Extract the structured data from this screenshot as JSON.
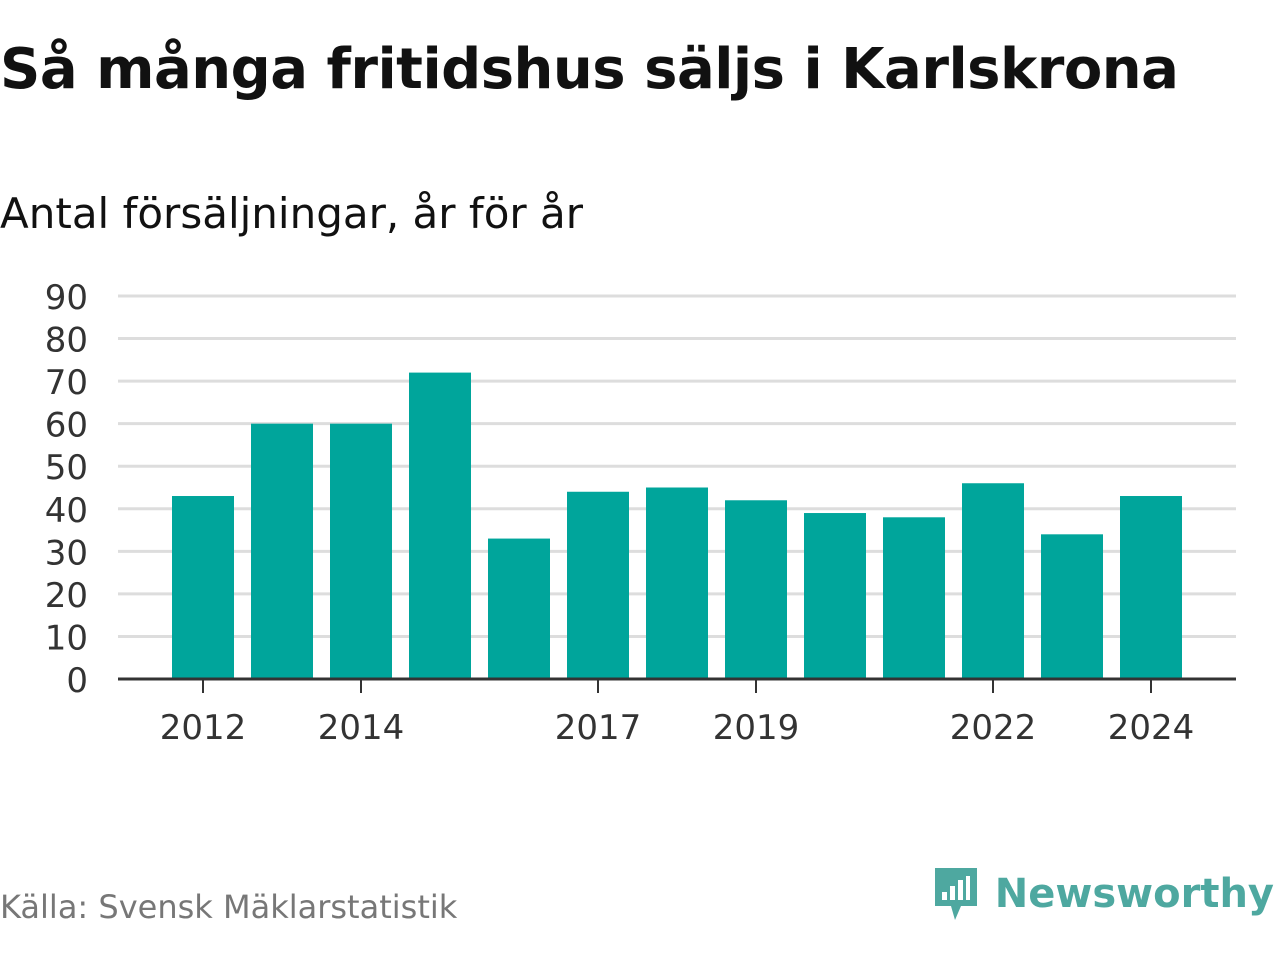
{
  "title": "Så många fritidshus säljs i Karlskrona",
  "subtitle": "Antal försäljningar, år för år",
  "source": "Källa: Svensk Mäklarstatistik",
  "brand": "Newsworthy",
  "colors": {
    "bar": "#00a59b",
    "grid": "#dddddd",
    "axis": "#333333",
    "brand": "#4ea8a0"
  },
  "chart_data": {
    "type": "bar",
    "categories": [
      "2012",
      "2013",
      "2014",
      "2015",
      "2016",
      "2017",
      "2018",
      "2019",
      "2020",
      "2021",
      "2022",
      "2023",
      "2024"
    ],
    "values": [
      43,
      60,
      60,
      72,
      33,
      44,
      45,
      42,
      39,
      38,
      46,
      34,
      43
    ],
    "tick_labels_x": [
      "2012",
      "2014",
      "2017",
      "2019",
      "2022",
      "2024"
    ],
    "yticks": [
      0,
      10,
      20,
      30,
      40,
      50,
      60,
      70,
      80,
      90
    ],
    "ylim": [
      0,
      90
    ],
    "grid": true,
    "title": "Så många fritidshus säljs i Karlskrona",
    "ylabel": "Antal försäljningar, år för år",
    "xlabel": ""
  }
}
